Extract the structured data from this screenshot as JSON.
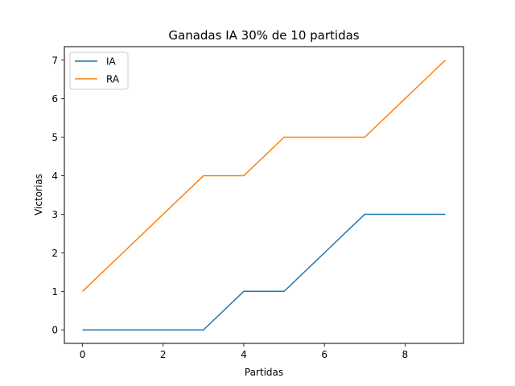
{
  "chart_data": {
    "type": "line",
    "title": "Ganadas IA 30% de 10 partidas",
    "xlabel": "Partidas",
    "ylabel": "Victorias",
    "x": [
      0,
      1,
      2,
      3,
      4,
      5,
      6,
      7,
      8,
      9
    ],
    "xlim": [
      -0.45,
      9.45
    ],
    "ylim": [
      -0.35,
      7.35
    ],
    "xticks": [
      0,
      2,
      4,
      6,
      8
    ],
    "yticks": [
      0,
      1,
      2,
      3,
      4,
      5,
      6,
      7
    ],
    "grid": false,
    "legend_position": "upper-left",
    "series": [
      {
        "name": "IA",
        "color": "#1f77b4",
        "values": [
          0,
          0,
          0,
          0,
          1,
          1,
          2,
          3,
          3,
          3
        ]
      },
      {
        "name": "RA",
        "color": "#ff7f0e",
        "values": [
          1,
          2,
          3,
          4,
          4,
          5,
          5,
          5,
          6,
          7
        ]
      }
    ]
  }
}
